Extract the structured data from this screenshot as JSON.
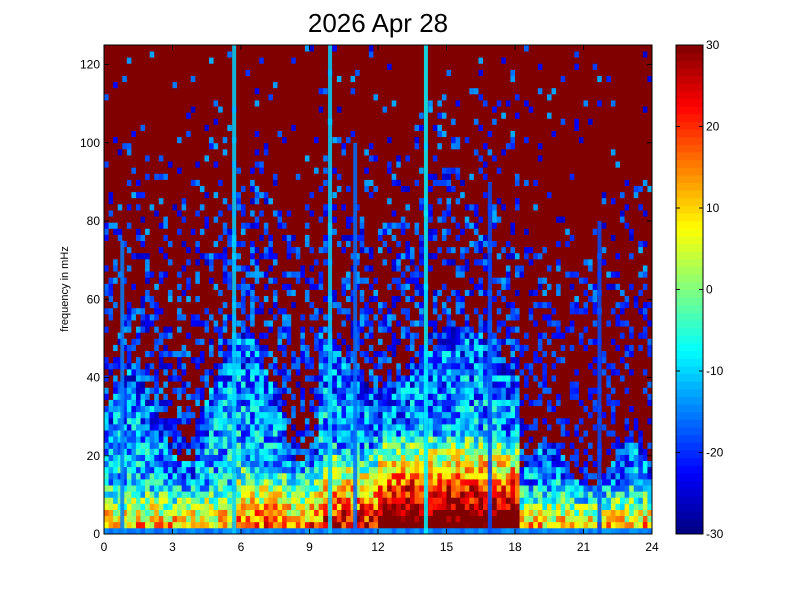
{
  "chart_data": {
    "type": "heatmap",
    "title": "2026 Apr 28",
    "xlabel": "",
    "ylabel": "frequency in mHz",
    "xlim": [
      0,
      24
    ],
    "ylim": [
      0,
      125
    ],
    "x_ticks": [
      0,
      3,
      6,
      9,
      12,
      15,
      18,
      21,
      24
    ],
    "x_tick_labels": [
      "0",
      "3",
      "6",
      "9",
      "12",
      "15",
      "18",
      "21",
      "24"
    ],
    "y_ticks": [
      0,
      20,
      40,
      60,
      80,
      100,
      120
    ],
    "y_tick_labels": [
      "0",
      "20",
      "40",
      "60",
      "80",
      "100",
      "120"
    ],
    "colorbar": {
      "clim": [
        -30,
        30
      ],
      "ticks": [
        -30,
        -20,
        -10,
        0,
        10,
        20,
        30
      ],
      "tick_labels": [
        "-30",
        "-20",
        "-10",
        "0",
        "10",
        "20",
        "30"
      ],
      "colormap": "jet"
    },
    "grid": false,
    "x_resolution_hours": 0.2,
    "y_resolution_mHz": 1.5625,
    "features": {
      "background_level_dB": 30,
      "low_frequency_band_mHz": [
        0,
        40
      ],
      "peak_activity_hours": [
        12,
        18
      ],
      "peak_activity_freq_mHz": [
        0,
        20
      ],
      "peak_level_dB": 30,
      "baseline_strip_freq_mHz": [
        0,
        1.5
      ],
      "baseline_strip_level_dB": -15,
      "vertical_streaks": [
        {
          "hour": 0.8,
          "level_dB": -15,
          "top_mHz": 75
        },
        {
          "hour": 5.7,
          "level_dB": -10,
          "top_mHz": 125
        },
        {
          "hour": 9.9,
          "level_dB": -10,
          "top_mHz": 125
        },
        {
          "hour": 11.0,
          "level_dB": -16,
          "top_mHz": 100
        },
        {
          "hour": 14.1,
          "level_dB": -8,
          "top_mHz": 125
        },
        {
          "hour": 16.9,
          "level_dB": -18,
          "top_mHz": 90
        },
        {
          "hour": 21.7,
          "level_dB": -18,
          "top_mHz": 80
        }
      ]
    }
  }
}
